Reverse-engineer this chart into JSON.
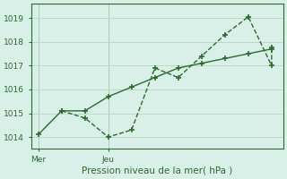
{
  "line1_x": [
    0,
    1,
    2,
    3,
    4,
    5,
    6,
    7,
    8,
    9,
    10
  ],
  "line1_y": [
    1014.1,
    1015.1,
    1015.1,
    1015.7,
    1016.1,
    1016.5,
    1016.9,
    1017.1,
    1017.3,
    1017.5,
    1017.7
  ],
  "line2_x": [
    1,
    2,
    3,
    4,
    5,
    6,
    7,
    8,
    9,
    10,
    10
  ],
  "line2_y": [
    1015.1,
    1014.8,
    1014.0,
    1014.3,
    1016.9,
    1016.5,
    1017.4,
    1018.3,
    1019.05,
    1017.0,
    1017.75
  ],
  "color": "#2d6a2d",
  "bg_color": "#d8f0e8",
  "grid_color": "#b8d4c0",
  "xlabel": "Pression niveau de la mer( hPa )",
  "ytick_vals": [
    1014,
    1015,
    1016,
    1017,
    1018,
    1019
  ],
  "ytick_labels": [
    "1014",
    "1015",
    "1016",
    "1017",
    "1018",
    "1019"
  ],
  "ylim": [
    1013.5,
    1019.6
  ],
  "xlim": [
    -0.3,
    10.5
  ],
  "vline_positions": [
    0,
    3
  ],
  "xtick_positions": [
    0,
    3
  ],
  "xtick_labels": [
    "Mer",
    "Jeu"
  ]
}
